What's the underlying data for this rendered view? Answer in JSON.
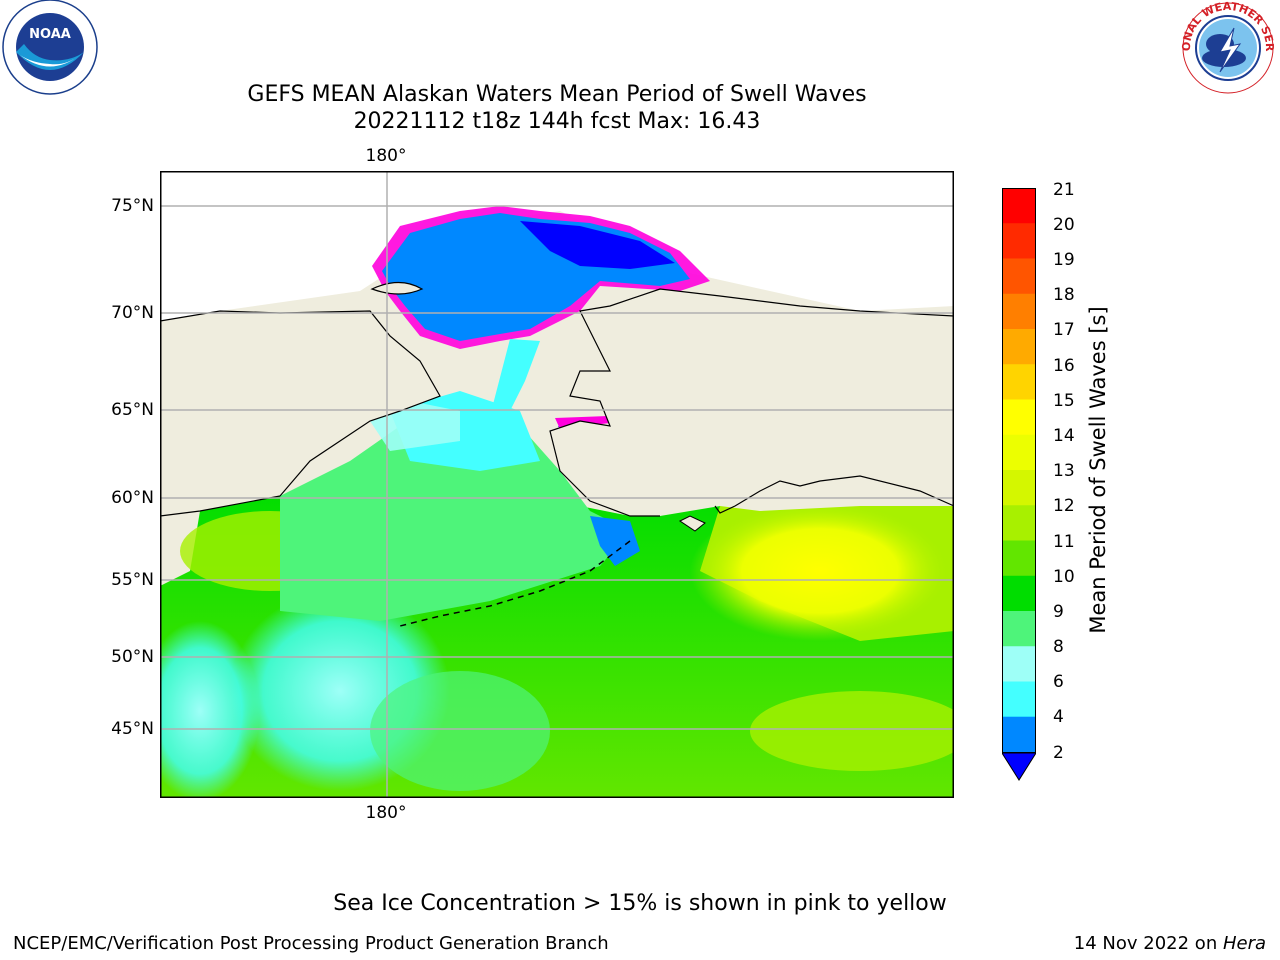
{
  "logos": {
    "left": {
      "name": "NOAA",
      "ring_text": "NATIONAL OCEANIC AND ATMOSPHERIC ADMINISTRATION · U.S. DEPARTMENT OF COMMERCE"
    },
    "right": {
      "ring_text": "NATIONAL WEATHER SERVICE"
    }
  },
  "title": {
    "line1": "GEFS MEAN Alaskan Waters Mean Period of Swell Waves",
    "line2": "20221112 t18z 144h fcst   Max: 16.43"
  },
  "map": {
    "lat_labels": [
      "75°N",
      "70°N",
      "65°N",
      "60°N",
      "55°N",
      "50°N",
      "45°N"
    ],
    "lon_label_top": "180°",
    "lon_label_bottom": "180°",
    "colors": {
      "land": "#efedde",
      "coast": "#000000",
      "grid": "#b0b0b0"
    }
  },
  "colorbar": {
    "label": "Mean Period of Swell Waves [s]",
    "ticks": [
      "21",
      "20",
      "19",
      "18",
      "17",
      "16",
      "15",
      "14",
      "13",
      "12",
      "11",
      "10",
      "9",
      "8",
      "6",
      "4",
      "2"
    ],
    "colors": [
      "#ff0000",
      "#ff2a00",
      "#ff5500",
      "#ff7f00",
      "#ffaa00",
      "#ffd400",
      "#ffff00",
      "#ecff00",
      "#d4f700",
      "#a8f000",
      "#62e600",
      "#00dd00",
      "#4ef47a",
      "#9efff7",
      "#44ffff",
      "#00f7ff",
      "#0088ff"
    ],
    "extend_color": "#0000ff"
  },
  "footer": {
    "note": "Sea Ice Concentration > 15% is shown in pink to yellow",
    "left": "NCEP/EMC/Verification Post Processing Product Generation Branch",
    "right_prefix": "14 Nov 2022 on ",
    "right_italic": "Hera"
  }
}
